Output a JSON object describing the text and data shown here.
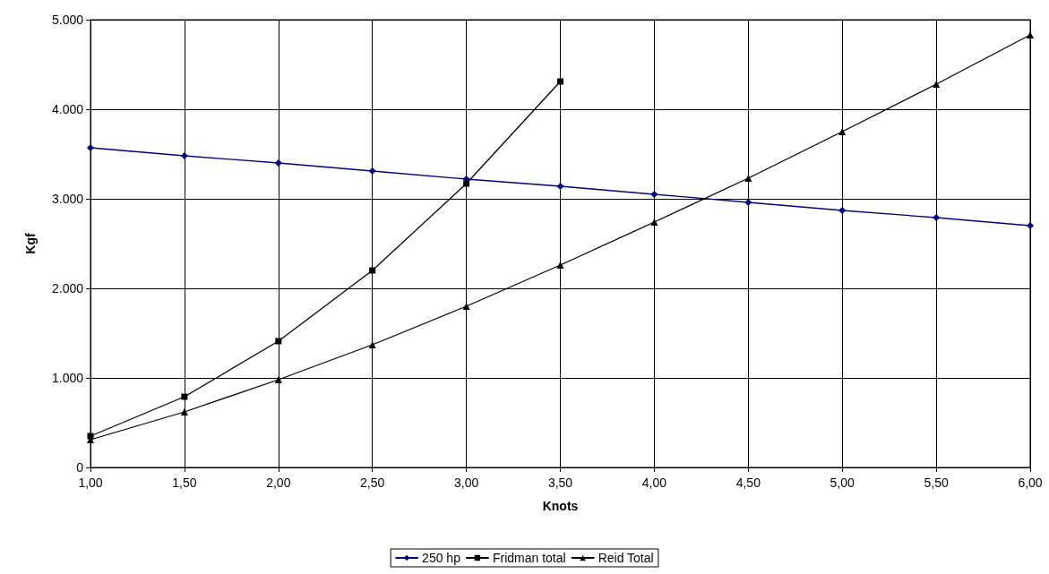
{
  "chart_data": {
    "type": "line",
    "xlabel": "Knots",
    "ylabel": "Kgf",
    "x": [
      1,
      1.5,
      2,
      2.5,
      3,
      3.5,
      4,
      4.5,
      5,
      5.5,
      6
    ],
    "series": [
      {
        "name": "250 hp",
        "color": "#000080",
        "marker": "diamond",
        "values": [
          3570,
          3480,
          3400,
          3310,
          3220,
          3140,
          3050,
          2960,
          2870,
          2790,
          2700
        ]
      },
      {
        "name": "Fridman total",
        "color": "#000000",
        "marker": "square",
        "values": [
          350,
          790,
          1410,
          2200,
          3170,
          4310,
          null,
          null,
          null,
          null,
          null
        ]
      },
      {
        "name": "Reid Total",
        "color": "#000000",
        "marker": "triangle",
        "values": [
          310,
          620,
          980,
          1370,
          1800,
          2260,
          2740,
          3230,
          3750,
          4280,
          4830
        ]
      }
    ],
    "xlim": [
      1,
      6
    ],
    "xticks": [
      {
        "value": 1,
        "label": "1,00"
      },
      {
        "value": 1.5,
        "label": "1,50"
      },
      {
        "value": 2,
        "label": "2,00"
      },
      {
        "value": 2.5,
        "label": "2,50"
      },
      {
        "value": 3,
        "label": "3,00"
      },
      {
        "value": 3.5,
        "label": "3,50"
      },
      {
        "value": 4,
        "label": "4,00"
      },
      {
        "value": 4.5,
        "label": "4,50"
      },
      {
        "value": 5,
        "label": "5,00"
      },
      {
        "value": 5.5,
        "label": "5,50"
      },
      {
        "value": 6,
        "label": "6,00"
      }
    ],
    "ylim": [
      0,
      5000
    ],
    "yticks": [
      0,
      {
        "value": 1000,
        "label": "1.000"
      },
      {
        "value": 2000,
        "label": "2.000"
      },
      {
        "value": 3000,
        "label": "3.000"
      },
      {
        "value": 4000,
        "label": "4.000"
      },
      {
        "value": 5000,
        "label": "5.000"
      }
    ],
    "grid": true,
    "legend": "bottom",
    "line_style": "solid"
  }
}
